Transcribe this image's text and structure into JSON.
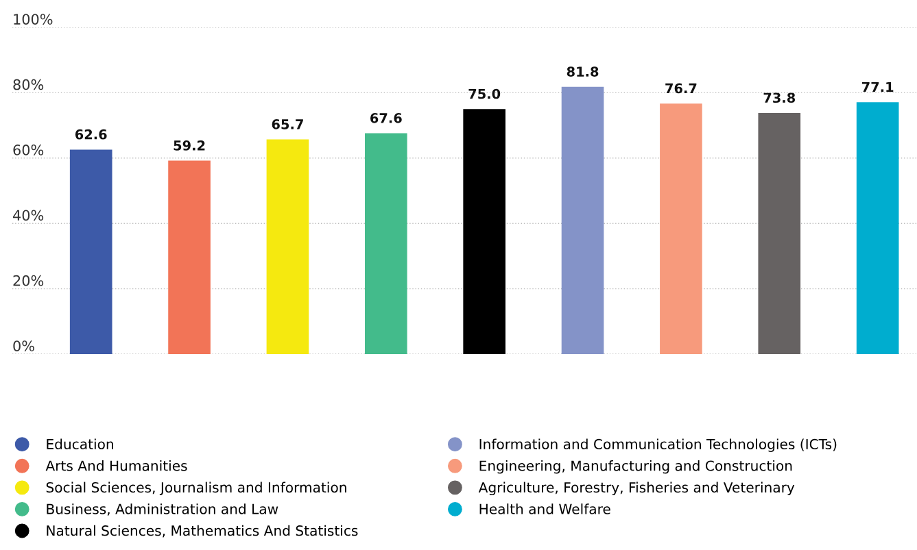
{
  "chart_data": {
    "type": "bar",
    "categories": [
      null,
      null,
      null,
      null,
      null,
      null,
      null,
      null,
      null
    ],
    "series": [
      {
        "name": "Education",
        "color": "#3d5aa8",
        "values": [
          62.6,
          null,
          null,
          null,
          null,
          null,
          null,
          null,
          null
        ],
        "value_labels": [
          "62.6",
          null,
          null,
          null,
          null,
          null,
          null,
          null,
          null
        ]
      },
      {
        "name": "Arts And Humanities",
        "color": "#f27457",
        "values": [
          null,
          59.2,
          null,
          null,
          null,
          null,
          null,
          null,
          null
        ],
        "value_labels": [
          null,
          "59.2",
          null,
          null,
          null,
          null,
          null,
          null,
          null
        ]
      },
      {
        "name": "Social Sciences, Journalism and Information",
        "color": "#f5e90f",
        "values": [
          null,
          null,
          65.7,
          null,
          null,
          null,
          null,
          null,
          null
        ],
        "value_labels": [
          null,
          null,
          "65.7",
          null,
          null,
          null,
          null,
          null,
          null
        ]
      },
      {
        "name": "Business, Administration and Law",
        "color": "#43bb8b",
        "values": [
          null,
          null,
          null,
          67.6,
          null,
          null,
          null,
          null,
          null
        ],
        "value_labels": [
          null,
          null,
          null,
          "67.6",
          null,
          null,
          null,
          null,
          null
        ]
      },
      {
        "name": "Natural Sciences, Mathematics And Statistics",
        "color": "#000000",
        "values": [
          null,
          null,
          null,
          null,
          75.0,
          null,
          null,
          null,
          null
        ],
        "value_labels": [
          null,
          null,
          null,
          null,
          "75.0",
          null,
          null,
          null,
          null
        ]
      },
      {
        "name": "Information and Communication Technologies (ICTs)",
        "color": "#8493c8",
        "values": [
          null,
          null,
          null,
          null,
          null,
          81.8,
          null,
          null,
          null
        ],
        "value_labels": [
          null,
          null,
          null,
          null,
          null,
          "81.8",
          null,
          null,
          null
        ]
      },
      {
        "name": "Engineering, Manufacturing and Construction",
        "color": "#f79a7c",
        "values": [
          null,
          null,
          null,
          null,
          null,
          null,
          76.7,
          null,
          null
        ],
        "value_labels": [
          null,
          null,
          null,
          null,
          null,
          null,
          "76.7",
          null,
          null
        ]
      },
      {
        "name": "Agriculture, Forestry, Fisheries and Veterinary",
        "color": "#666262",
        "values": [
          null,
          null,
          null,
          null,
          null,
          null,
          null,
          73.8,
          null
        ],
        "value_labels": [
          null,
          null,
          null,
          null,
          null,
          null,
          null,
          "73.8",
          null
        ]
      },
      {
        "name": "Health and Welfare",
        "color": "#00adcf",
        "values": [
          null,
          null,
          null,
          null,
          null,
          null,
          null,
          null,
          77.1
        ],
        "value_labels": [
          null,
          null,
          null,
          null,
          null,
          null,
          null,
          null,
          "77.1"
        ]
      }
    ],
    "ylim": [
      0,
      100
    ],
    "yticks": [
      {
        "value": 0,
        "label": "0%"
      },
      {
        "value": 20,
        "label": "20%"
      },
      {
        "value": 40,
        "label": "40%"
      },
      {
        "value": 60,
        "label": "60%"
      },
      {
        "value": 80,
        "label": "80%"
      },
      {
        "value": 100,
        "label": "100%"
      }
    ],
    "grid": "y",
    "legend": "bottom",
    "tick_labels": "y",
    "marker": "circle"
  }
}
